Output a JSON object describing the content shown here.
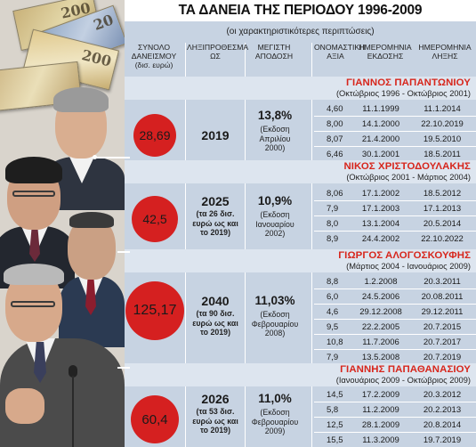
{
  "title": "ΤΑ ΔΑΝΕΙΑ ΤΗΣ ΠΕΡΙΟΔΟΥ 1996-2009",
  "subtitle": "(οι χαρακτηριστικότερες περιπτώσεις)",
  "headers": {
    "total": "ΣΥΝΟΛΟ ΔΑΝΕΙΣΜΟΥ (δισ. ευρώ)",
    "maturity": "ΛΗΞΙΠΡΟΘΕΣΜΑ ΩΣ",
    "yield": "ΜΕΓΙΣΤΗ ΑΠΟΔΟΣΗ",
    "face": "ΟΝΟΜΑΣΤΙΚΗ ΑΞΙΑ",
    "issue_date": "ΗΜΕΡΟΜΗΝΙΑ ΕΚΔΟΣΗΣ",
    "expiry_date": "ΗΜΕΡΟΜΗΝΙΑ ΛΗΞΗΣ"
  },
  "colors": {
    "accent": "#d52020",
    "name": "#d7261c",
    "board": "#c7d3e2",
    "band": "#dde5ef"
  },
  "photo_icons": [
    "banknote-200-icon",
    "banknote-20-icon",
    "portrait-icon",
    "microphone-icon"
  ],
  "banknotes": {
    "note1": "20",
    "note2": "200",
    "note3": "200"
  },
  "sections": [
    {
      "name": "ΓΙΑΝΝΟΣ ΠΑΠΑΝΤΩΝΙΟΥ",
      "period": "(Οκτώβριος 1996 - Οκτώβριος 2001)",
      "total": "28,69",
      "maturity": "2019",
      "maturity_note": "",
      "yield": "13,8%",
      "yield_note": "(Εκδοση Απριλίου 2000)",
      "rows": [
        {
          "face": "4,60",
          "issue": "11.1.1999",
          "expiry": "11.1.2014"
        },
        {
          "face": "8,00",
          "issue": "14.1.2000",
          "expiry": "22.10.2019"
        },
        {
          "face": "8,07",
          "issue": "21.4.2000",
          "expiry": "19.5.2010"
        },
        {
          "face": "6,46",
          "issue": "30.1.2001",
          "expiry": "18.5.2011"
        }
      ]
    },
    {
      "name": "ΝΙΚΟΣ ΧΡΙΣΤΟΔΟΥΛΑΚΗΣ",
      "period": "(Οκτώβριος 2001 - Μάρτιος 2004)",
      "total": "42,5",
      "maturity": "2025",
      "maturity_note": "(τα 26 δισ. ευρώ ως και το 2019)",
      "yield": "10,9%",
      "yield_note": "(Εκδοση Ιανουαρίου 2002)",
      "rows": [
        {
          "face": "8,06",
          "issue": "17.1.2002",
          "expiry": "18.5.2012"
        },
        {
          "face": "7,9",
          "issue": "17.1.2003",
          "expiry": "17.1.2013"
        },
        {
          "face": "8,0",
          "issue": "13.1.2004",
          "expiry": "20.5.2014"
        },
        {
          "face": "8,9",
          "issue": "24.4.2002",
          "expiry": "22.10.2022"
        }
      ]
    },
    {
      "name": "ΓΙΩΡΓΟΣ ΑΛΟΓΟΣΚΟΥΦΗΣ",
      "period": "(Μάρτιος 2004 - Ιανουάριος 2009)",
      "total": "125,17",
      "maturity": "2040",
      "maturity_note": "(τα 90 δισ. ευρώ ως και το 2019)",
      "yield": "11,03%",
      "yield_note": "(Εκδοση Φεβρουαρίου 2008)",
      "rows": [
        {
          "face": "8,8",
          "issue": "1.2.2008",
          "expiry": "20.3.2011"
        },
        {
          "face": "6,0",
          "issue": "24.5.2006",
          "expiry": "20.08.2011"
        },
        {
          "face": "4,6",
          "issue": "29.12.2008",
          "expiry": "29.12.2011"
        },
        {
          "face": "9,5",
          "issue": "22.2.2005",
          "expiry": "20.7.2015"
        },
        {
          "face": "10,8",
          "issue": "11.7.2006",
          "expiry": "20.7.2017"
        },
        {
          "face": "7,9",
          "issue": "13.5.2008",
          "expiry": "20.7.2019"
        }
      ]
    },
    {
      "name": "ΓΙΑΝΝΗΣ ΠΑΠΑΘΑΝΑΣΙΟΥ",
      "period": "(Ιανουάριος 2009 - Οκτώβριος 2009)",
      "total": "60,4",
      "maturity": "2026",
      "maturity_note": "(τα 53 δισ. ευρώ ως και το 2019)",
      "yield": "11,0%",
      "yield_note": "(Εκδοση Φεβρουαρίου 2009)",
      "rows": [
        {
          "face": "14,5",
          "issue": "17.2.2009",
          "expiry": "20.3.2012"
        },
        {
          "face": "5,8",
          "issue": "11.2.2009",
          "expiry": "20.2.2013"
        },
        {
          "face": "12,5",
          "issue": "28.1.2009",
          "expiry": "20.8.2014"
        },
        {
          "face": "15,5",
          "issue": "11.3.2009",
          "expiry": "19.7.2019"
        }
      ]
    }
  ]
}
